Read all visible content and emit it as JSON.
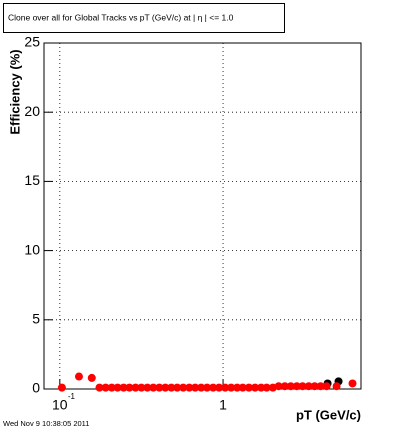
{
  "chart_data": {
    "type": "scatter",
    "title": "Clone  over all for Global Tracks vs pT (GeV/c) at |  η | <= 1.0",
    "x_label": "pT (GeV/c)",
    "y_label": "Efficiency (%)",
    "footer": "Wed Nov  9 10:38:05 2011",
    "xscale": "log",
    "grid": true,
    "xlim": [
      0.08,
      7
    ],
    "ylim": [
      0,
      25
    ],
    "xticks": [
      {
        "value": 0.1,
        "label": "10",
        "exponent": "-1"
      },
      1
    ],
    "yticks": [
      0,
      5,
      10,
      15,
      20,
      25
    ],
    "series": [
      {
        "color": "#000000",
        "x": [
          4.37,
          5.1
        ],
        "values": [
          0.4,
          0.55
        ]
      },
      {
        "color": "#ff0000",
        "x": [
          0.103,
          0.131,
          0.157,
          0.175,
          0.191,
          0.208,
          0.226,
          0.246,
          0.267,
          0.291,
          0.316,
          0.344,
          0.374,
          0.407,
          0.443,
          0.482,
          0.524,
          0.57,
          0.621,
          0.675,
          0.734,
          0.798,
          0.869,
          0.945,
          1.03,
          1.12,
          1.22,
          1.32,
          1.44,
          1.57,
          1.71,
          1.85,
          2.02,
          2.19,
          2.39,
          2.6,
          2.83,
          3.07,
          3.35,
          3.64,
          3.96,
          4.31,
          4.96,
          6.21
        ],
        "values": [
          0.1,
          0.9,
          0.8,
          0.1,
          0.1,
          0.1,
          0.1,
          0.1,
          0.1,
          0.1,
          0.1,
          0.1,
          0.1,
          0.1,
          0.1,
          0.1,
          0.1,
          0.1,
          0.1,
          0.1,
          0.1,
          0.1,
          0.1,
          0.1,
          0.1,
          0.1,
          0.1,
          0.1,
          0.1,
          0.1,
          0.1,
          0.1,
          0.1,
          0.2,
          0.2,
          0.2,
          0.2,
          0.2,
          0.2,
          0.2,
          0.2,
          0.2,
          0.2,
          0.4
        ]
      }
    ]
  }
}
